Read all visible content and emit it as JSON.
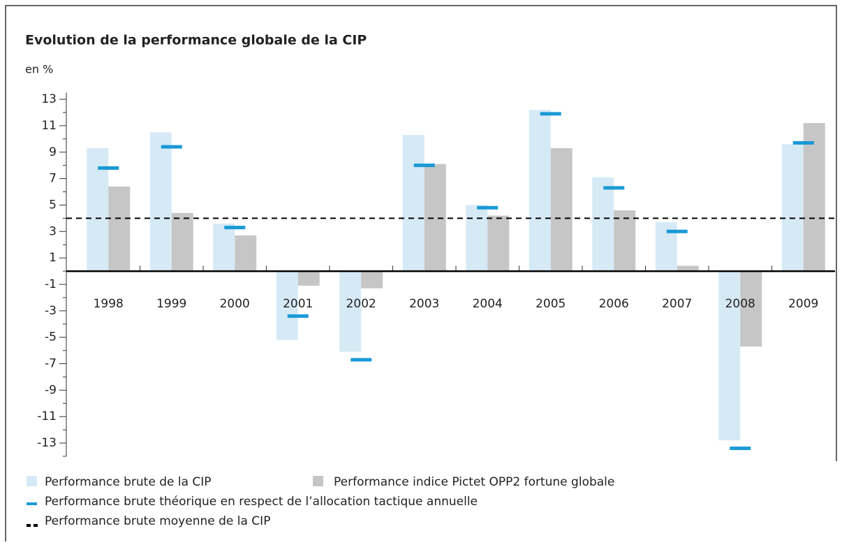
{
  "chart_data": {
    "type": "bar",
    "title": "Evolution de la performance globale de la CIP",
    "subtitle": "en %",
    "categories": [
      "1998",
      "1999",
      "2000",
      "2001",
      "2002",
      "2003",
      "2004",
      "2005",
      "2006",
      "2007",
      "2008",
      "2009"
    ],
    "series": [
      {
        "name": "Performance brute de la CIP",
        "color": "#d6eaf6",
        "values": [
          9.3,
          10.5,
          3.6,
          -5.2,
          -6.1,
          10.3,
          5.0,
          12.2,
          7.1,
          3.7,
          -12.8,
          9.6
        ]
      },
      {
        "name": "Performance indice Pictet OPP2 fortune globale",
        "color": "#c6c6c6",
        "values": [
          6.4,
          4.4,
          2.7,
          -1.1,
          -1.3,
          8.1,
          4.2,
          9.3,
          4.6,
          0.4,
          -5.7,
          11.2
        ]
      },
      {
        "name": "Performance brute théorique en respect de l’allocation tactique annuelle",
        "color": "#1a9ad6",
        "marker": "dash",
        "values": [
          7.8,
          9.4,
          3.3,
          -3.4,
          -6.7,
          8.0,
          4.8,
          11.9,
          6.3,
          3.0,
          -13.4,
          9.7
        ]
      }
    ],
    "reference_line": {
      "name": "Performance brute moyenne de la CIP",
      "value": 4.0,
      "color": "#000000",
      "style": "dashed"
    },
    "ylim": [
      -14,
      13.5
    ],
    "yticks": [
      13,
      11,
      9,
      7,
      5,
      3,
      1,
      -1,
      -3,
      -5,
      -7,
      -9,
      -11,
      -13
    ],
    "yminorticks": [
      12,
      10,
      8,
      6,
      4,
      2,
      0,
      -2,
      -4,
      -6,
      -8,
      -10,
      -12,
      -14
    ],
    "grid": false
  }
}
